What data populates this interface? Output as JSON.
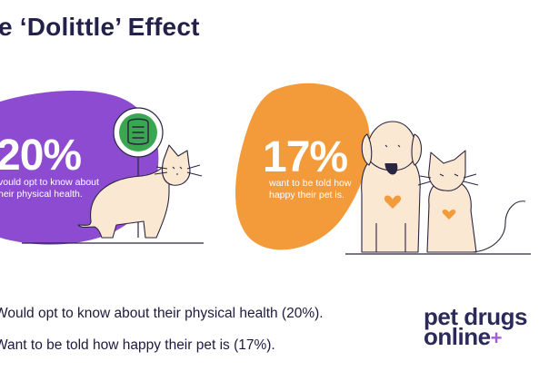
{
  "title": "e ‘Dolittle’ Effect",
  "left_stat": {
    "value": "20%",
    "caption_line1": "vould opt to know about",
    "caption_line2": "heir physical health."
  },
  "right_stat": {
    "value": "17%",
    "caption_line1": "want to be told how",
    "caption_line2": "happy their pet is."
  },
  "bullets": [
    "Would opt to know about their physical health (20%).",
    "Want to be told how happy their pet is (17%)."
  ],
  "logo": {
    "line1": "pet drugs",
    "line2": "online",
    "plus": "+"
  },
  "colors": {
    "purple": "#8c4bd0",
    "orange": "#f39a3b",
    "green": "#3aa64f",
    "cream": "#fbe8d2",
    "outline": "#2a2540"
  },
  "icons": [
    "intestine-icon",
    "heart-icon"
  ]
}
